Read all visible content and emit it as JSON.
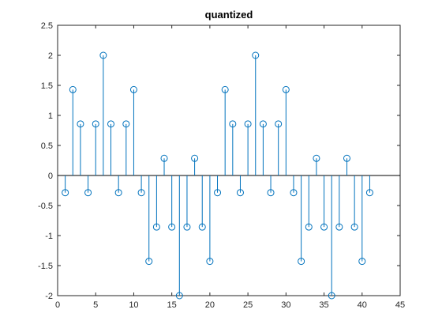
{
  "chart_data": {
    "type": "stem",
    "title": "quantized",
    "xlabel": "",
    "ylabel": "",
    "xlim": [
      0,
      45
    ],
    "ylim": [
      -2,
      2.5
    ],
    "x_ticks": [
      0,
      5,
      10,
      15,
      20,
      25,
      30,
      35,
      40,
      45
    ],
    "y_ticks": [
      -2,
      -1.5,
      -1,
      -0.5,
      0,
      0.5,
      1,
      1.5,
      2,
      2.5
    ],
    "x_tick_labels": [
      "0",
      "5",
      "10",
      "15",
      "20",
      "25",
      "30",
      "35",
      "40",
      "45"
    ],
    "y_tick_labels": [
      "-2",
      "-1.5",
      "-1",
      "-0.5",
      "0",
      "0.5",
      "1",
      "1.5",
      "2",
      "2.5"
    ],
    "grid": false,
    "series": [
      {
        "color": "#0072BD",
        "marker": "circle-open",
        "x": [
          1,
          2,
          3,
          4,
          5,
          6,
          7,
          8,
          9,
          10,
          11,
          12,
          13,
          14,
          15,
          16,
          17,
          18,
          19,
          20,
          21,
          22,
          23,
          24,
          25,
          26,
          27,
          28,
          29,
          30,
          31,
          32,
          33,
          34,
          35,
          36,
          37,
          38,
          39,
          40,
          41
        ],
        "values": [
          -0.286,
          1.429,
          0.857,
          -0.286,
          0.857,
          2,
          0.857,
          -0.286,
          0.857,
          1.429,
          -0.286,
          -1.429,
          -0.857,
          0.286,
          -0.857,
          -2,
          -0.857,
          0.286,
          -0.857,
          -1.429,
          -0.286,
          1.429,
          0.857,
          -0.286,
          0.857,
          2,
          0.857,
          -0.286,
          0.857,
          1.429,
          -0.286,
          -1.429,
          -0.857,
          0.286,
          -0.857,
          -2,
          -0.857,
          0.286,
          -0.857,
          -1.429,
          -0.286
        ]
      }
    ]
  },
  "colors": {
    "axes": "#262626",
    "baseline": "#000000",
    "series": "#0072BD"
  }
}
